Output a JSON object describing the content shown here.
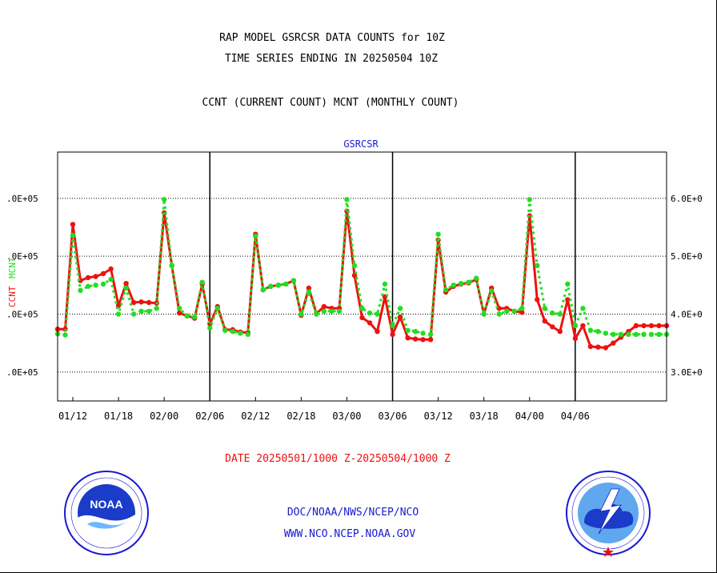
{
  "header": {
    "title1": "RAP MODEL GSRCSR DATA COUNTS for 10Z",
    "title2": "TIME SERIES ENDING IN 20250504 10Z",
    "subtitle": "CCNT (CURRENT COUNT) MCNT (MONTHLY COUNT)"
  },
  "date_label": "DATE 20250501/1000 Z-20250504/1000 Z",
  "footer": {
    "line1": "DOC/NOAA/NWS/NCEP/NCO",
    "line2": "WWW.NCO.NCEP.NOAA.GOV"
  },
  "logos": {
    "noaa_text": "NOAA",
    "noaa_ring": "NATIONAL OCEANIC AND ATMOSPHERIC ADMINISTRATION · U.S. DEPARTMENT OF COMMERCE",
    "nws_ring": "NATIONAL WEATHER SERVICE"
  },
  "colors": {
    "ccnt": "#ee1111",
    "mcnt": "#22dd22",
    "title_blue": "#1a1ad0",
    "date_red": "#ee1111"
  },
  "chart_data": {
    "type": "line",
    "title": "GSRCSR",
    "ylabel_left": "CCNT",
    "ylabel_right": "MCNT",
    "x_ticks": [
      "01/12",
      "01/18",
      "02/00",
      "02/06",
      "02/12",
      "02/18",
      "03/00",
      "03/06",
      "03/12",
      "03/18",
      "04/00",
      "04/06"
    ],
    "left_tick_labels": [
      ".0E+05",
      ".0E+05",
      ".0E+05",
      ".0E+05"
    ],
    "right_tick_labels": [
      "6.0E+0",
      "5.0E+0",
      "4.0E+0",
      "3.0E+0"
    ],
    "right_ylim": [
      2.5,
      6.8
    ],
    "x_range_hours": [
      -2,
      78
    ],
    "grid": true,
    "series": [
      {
        "name": "CCNT",
        "x": [
          -2,
          -1,
          0,
          1,
          2,
          3,
          4,
          5,
          6,
          7,
          8,
          9,
          10,
          11,
          12,
          13,
          14,
          15,
          16,
          17,
          18,
          19,
          20,
          21,
          22,
          23,
          24,
          25,
          26,
          27,
          28,
          29,
          30,
          31,
          32,
          33,
          34,
          35,
          36,
          37,
          38,
          39,
          40,
          41,
          42,
          43,
          44,
          45,
          46,
          47,
          48,
          49,
          50,
          51,
          52,
          53,
          54,
          55,
          56,
          57,
          58,
          59,
          60,
          61,
          62,
          63,
          64,
          65,
          66,
          67,
          68,
          69,
          70,
          71,
          72,
          73,
          74,
          75,
          76,
          77,
          78
        ],
        "values": [
          3.74,
          3.74,
          5.55,
          4.58,
          4.63,
          4.65,
          4.7,
          4.78,
          4.15,
          4.53,
          4.2,
          4.21,
          4.2,
          4.19,
          5.75,
          4.84,
          4.02,
          3.97,
          3.93,
          4.52,
          3.83,
          4.13,
          3.73,
          3.73,
          3.69,
          3.68,
          5.38,
          4.42,
          4.48,
          4.5,
          4.52,
          4.58,
          3.98,
          4.45,
          4.01,
          4.13,
          4.1,
          4.1,
          5.78,
          4.67,
          3.94,
          3.85,
          3.7,
          4.3,
          3.65,
          3.95,
          3.59,
          3.57,
          3.56,
          3.56,
          5.28,
          4.38,
          4.48,
          4.52,
          4.54,
          4.6,
          4.0,
          4.45,
          4.1,
          4.1,
          4.05,
          4.03,
          5.7,
          4.25,
          3.88,
          3.78,
          3.7,
          4.25,
          3.58,
          3.8,
          3.44,
          3.43,
          3.42,
          3.5,
          3.6,
          3.7,
          3.8,
          3.8,
          3.8,
          3.8,
          3.8
        ]
      },
      {
        "name": "MCNT",
        "x": [
          -2,
          -1,
          0,
          1,
          2,
          3,
          4,
          5,
          6,
          7,
          8,
          9,
          10,
          11,
          12,
          13,
          14,
          15,
          16,
          17,
          18,
          19,
          20,
          21,
          22,
          23,
          24,
          25,
          26,
          27,
          28,
          29,
          30,
          31,
          32,
          33,
          34,
          35,
          36,
          37,
          38,
          39,
          40,
          41,
          42,
          43,
          44,
          45,
          46,
          47,
          48,
          49,
          50,
          51,
          52,
          53,
          54,
          55,
          56,
          57,
          58,
          59,
          60,
          61,
          62,
          63,
          64,
          65,
          66,
          67,
          68,
          69,
          70,
          71,
          72,
          73,
          74,
          75,
          76,
          77,
          78
        ],
        "values": [
          3.66,
          3.64,
          5.36,
          4.41,
          4.48,
          4.5,
          4.52,
          4.6,
          4.0,
          4.45,
          4.0,
          4.05,
          4.05,
          4.1,
          5.98,
          4.84,
          4.1,
          3.97,
          3.95,
          4.55,
          3.76,
          4.1,
          3.72,
          3.7,
          3.67,
          3.65,
          5.35,
          4.42,
          4.48,
          4.5,
          4.52,
          4.58,
          4.0,
          4.38,
          4.0,
          4.05,
          4.05,
          4.05,
          5.98,
          4.84,
          4.1,
          4.02,
          4.0,
          4.52,
          3.8,
          4.1,
          3.72,
          3.7,
          3.67,
          3.65,
          5.38,
          4.42,
          4.5,
          4.53,
          4.55,
          4.62,
          4.0,
          4.4,
          4.0,
          4.05,
          4.05,
          4.1,
          5.98,
          4.84,
          4.1,
          4.02,
          4.0,
          4.52,
          3.8,
          4.1,
          3.72,
          3.7,
          3.67,
          3.65,
          3.65,
          3.65,
          3.65,
          3.65,
          3.65,
          3.65,
          3.65
        ]
      }
    ]
  }
}
